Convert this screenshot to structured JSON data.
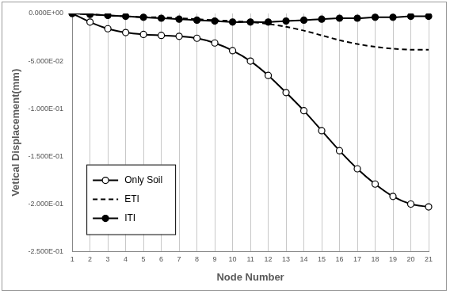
{
  "chart_data": {
    "type": "line",
    "x_label": "Node Number",
    "y_label": "Vetical Displacement(mm)",
    "categories": [
      "1",
      "2",
      "3",
      "4",
      "5",
      "6",
      "7",
      "8",
      "9",
      "10",
      "11",
      "12",
      "13",
      "14",
      "15",
      "16",
      "17",
      "18",
      "19",
      "20",
      "21"
    ],
    "series": [
      {
        "name": "Only Soil",
        "color": "#000000",
        "marker": "circle-open",
        "line_style": "solid",
        "values": [
          0,
          -0.009,
          -0.016,
          -0.02,
          -0.022,
          -0.023,
          -0.024,
          -0.026,
          -0.031,
          -0.039,
          -0.05,
          -0.065,
          -0.083,
          -0.102,
          -0.123,
          -0.144,
          -0.163,
          -0.179,
          -0.192,
          -0.2,
          -0.203
        ]
      },
      {
        "name": "ETI",
        "color": "#000000",
        "marker": "none",
        "line_style": "dashed",
        "values": [
          0,
          -0.001,
          -0.002,
          -0.003,
          -0.004,
          -0.004,
          -0.005,
          -0.006,
          -0.007,
          -0.008,
          -0.009,
          -0.011,
          -0.014,
          -0.018,
          -0.023,
          -0.028,
          -0.032,
          -0.035,
          -0.037,
          -0.038,
          -0.038
        ]
      },
      {
        "name": "ITI",
        "color": "#000000",
        "marker": "circle",
        "line_style": "solid",
        "values": [
          0,
          -0.001,
          -0.002,
          -0.003,
          -0.004,
          -0.005,
          -0.006,
          -0.007,
          -0.008,
          -0.009,
          -0.009,
          -0.009,
          -0.008,
          -0.007,
          -0.006,
          -0.005,
          -0.005,
          -0.004,
          -0.004,
          -0.003,
          -0.003
        ]
      }
    ],
    "ylim": [
      -0.25,
      0
    ],
    "yticks": [
      {
        "value": 0,
        "label": "0.000E+00"
      },
      {
        "value": -0.05,
        "label": "-5.000E-02"
      },
      {
        "value": -0.1,
        "label": "-1.000E-01"
      },
      {
        "value": -0.15,
        "label": "-1.500E-01"
      },
      {
        "value": -0.2,
        "label": "-2.000E-01"
      },
      {
        "value": -0.25,
        "label": "-2.500E-01"
      }
    ],
    "grid": "x",
    "legend": "lower left"
  }
}
